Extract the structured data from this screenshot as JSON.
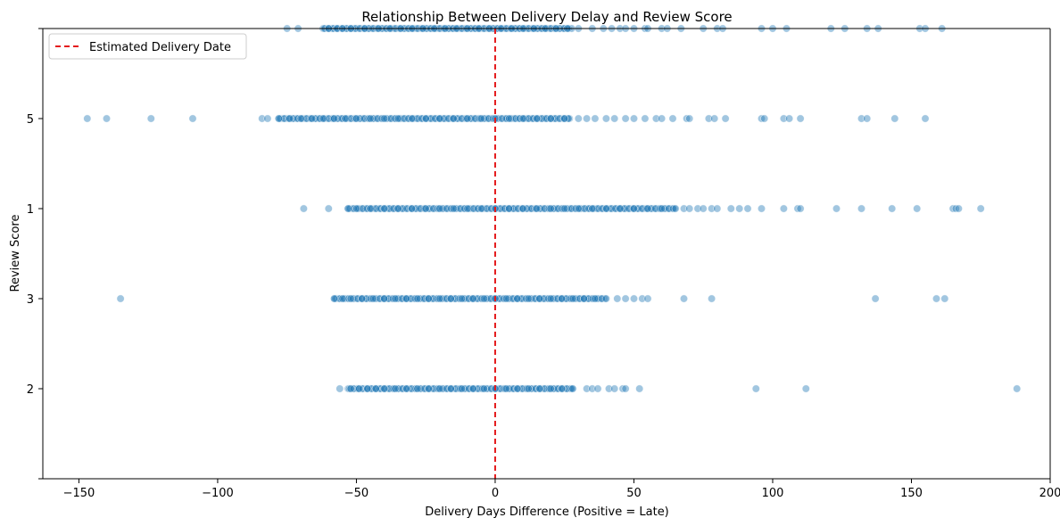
{
  "chart_data": {
    "type": "scatter",
    "title": "Relationship Between Delivery Delay and Review Score",
    "xlabel": "Delivery Days Difference (Positive = Late)",
    "ylabel": "Review Score",
    "xlim": [
      -163,
      200
    ],
    "xticks": [
      -150,
      -100,
      -50,
      0,
      50,
      100,
      150,
      200
    ],
    "xtick_labels": [
      "−150",
      "−100",
      "−50",
      "0",
      "50",
      "100",
      "150",
      "200"
    ],
    "ytick_labels": [
      "",
      "5",
      "1",
      "3",
      "2",
      ""
    ],
    "grid": false,
    "legend": {
      "placement": "top-left",
      "entries": [
        {
          "label": "Estimated Delivery Date",
          "style": "dashed-line",
          "color": "#e41a1c"
        }
      ]
    },
    "reference_line": {
      "x": 0,
      "label": "Estimated Delivery Date",
      "color": "#e41a1c",
      "style": "dashed"
    },
    "point_color": "#1f77b4",
    "series": [
      {
        "category": "",
        "dense_range": [
          -62,
          28
        ],
        "x": [
          -75,
          -71,
          -60,
          -57,
          -55,
          -52,
          -47,
          -42,
          -38,
          -34,
          -30,
          -26,
          -22,
          -18,
          -14,
          -10,
          -6,
          -2,
          2,
          6,
          10,
          14,
          18,
          22,
          26,
          30,
          35,
          39,
          42,
          45,
          47,
          50,
          54,
          55,
          60,
          62,
          67,
          75,
          80,
          82,
          96,
          100,
          105,
          121,
          126,
          134,
          138,
          153,
          155,
          161
        ]
      },
      {
        "category": "5",
        "dense_range": [
          -78,
          27
        ],
        "x": [
          -147,
          -140,
          -124,
          -109,
          -84,
          -82,
          -78,
          -74,
          -70,
          -66,
          -62,
          -58,
          -54,
          -50,
          -45,
          -40,
          -35,
          -30,
          -25,
          -20,
          -15,
          -10,
          -5,
          0,
          5,
          10,
          15,
          20,
          25,
          30,
          33,
          36,
          40,
          43,
          47,
          50,
          54,
          58,
          60,
          64,
          69,
          70,
          77,
          79,
          83,
          96,
          97,
          104,
          106,
          110,
          132,
          134,
          144,
          155
        ]
      },
      {
        "category": "1",
        "dense_range": [
          -53,
          65
        ],
        "x": [
          -69,
          -60,
          -53,
          -50,
          -45,
          -40,
          -35,
          -30,
          -25,
          -20,
          -15,
          -10,
          -5,
          0,
          5,
          10,
          15,
          20,
          25,
          30,
          35,
          40,
          45,
          50,
          55,
          60,
          65,
          68,
          70,
          73,
          75,
          78,
          80,
          85,
          88,
          91,
          96,
          104,
          109,
          110,
          123,
          132,
          143,
          152,
          165,
          166,
          167,
          175
        ]
      },
      {
        "category": "3",
        "dense_range": [
          -58,
          40
        ],
        "x": [
          -135,
          -58,
          -55,
          -52,
          -48,
          -44,
          -40,
          -36,
          -32,
          -28,
          -24,
          -20,
          -16,
          -12,
          -8,
          -4,
          0,
          4,
          8,
          12,
          16,
          20,
          24,
          28,
          32,
          36,
          40,
          44,
          47,
          50,
          53,
          55,
          68,
          78,
          137,
          159,
          162
        ]
      },
      {
        "category": "2",
        "dense_range": [
          -53,
          28
        ],
        "x": [
          -56,
          -52,
          -49,
          -46,
          -43,
          -40,
          -36,
          -32,
          -28,
          -24,
          -20,
          -16,
          -12,
          -8,
          -4,
          0,
          4,
          8,
          12,
          16,
          20,
          24,
          28,
          33,
          35,
          37,
          41,
          43,
          46,
          47,
          52,
          94,
          112,
          188
        ]
      }
    ]
  }
}
